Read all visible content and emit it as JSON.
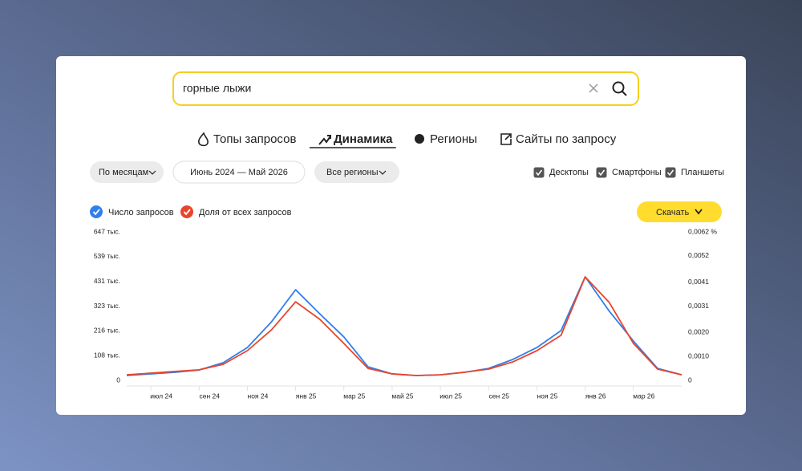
{
  "search": {
    "query": "горные лыжи"
  },
  "tabs": [
    "Топы запросов",
    "Динамика",
    "Регионы",
    "Сайты по запросу"
  ],
  "active_tab": 1,
  "filters": {
    "period": "По месяцам",
    "range": "Июнь 2024 — Май 2026",
    "region": "Все регионы"
  },
  "devices": [
    {
      "label": "Десктопы",
      "checked": true
    },
    {
      "label": "Смартфоны",
      "checked": true
    },
    {
      "label": "Планшеты",
      "checked": true
    }
  ],
  "download": "Скачать",
  "chart_data": {
    "type": "line",
    "categories": [
      null,
      "июл 24",
      null,
      "сен 24",
      null,
      "ноя 24",
      null,
      "янв 25",
      null,
      "мар 25",
      null,
      "май 25",
      null,
      "июл 25",
      null,
      "сен 25",
      null,
      "ноя 25",
      null,
      "янв 26",
      null,
      "мар 26",
      null,
      null
    ],
    "series": [
      {
        "name": "Число запросов",
        "color": "#2f80ed",
        "values": [
          21000,
          28000,
          35000,
          45000,
          77000,
          143000,
          255000,
          395000,
          290000,
          189000,
          59000,
          28000,
          21000,
          24000,
          35000,
          52000,
          91000,
          143000,
          217000,
          451000,
          301000,
          171000,
          52000,
          24000
        ]
      },
      {
        "name": "Доля от всех запросов",
        "color": "#e8452c",
        "axis": "y2",
        "values": [
          0.00023,
          0.0003,
          0.00037,
          0.00044,
          0.00067,
          0.00124,
          0.00211,
          0.00328,
          0.00255,
          0.00154,
          0.0005,
          0.00027,
          0.0002,
          0.00023,
          0.00034,
          0.00047,
          0.00077,
          0.00124,
          0.00188,
          0.00432,
          0.00325,
          0.00154,
          0.00047,
          0.00023
        ]
      }
    ],
    "ylim": [
      0,
      647000
    ],
    "yticks": [
      0,
      {
        "value": 108000,
        "label": "108 тыс."
      },
      {
        "value": 216000,
        "label": "216 тыс."
      },
      {
        "value": 323000,
        "label": "323 тыс."
      },
      {
        "value": 431000,
        "label": "431 тыс."
      },
      {
        "value": 539000,
        "label": "539 тыс."
      },
      {
        "value": 647000,
        "label": "647 тыс."
      }
    ],
    "y2lim": [
      0,
      0.0062
    ],
    "y2ticks": [
      0,
      {
        "value": 0.001,
        "label": "0,0010"
      },
      {
        "value": 0.002,
        "label": "0,0020"
      },
      {
        "value": 0.0031,
        "label": "0,0031"
      },
      {
        "value": 0.0041,
        "label": "0,0041"
      },
      {
        "value": 0.0052,
        "label": "0,0052"
      },
      {
        "value": 0.0062,
        "label": "0,0062 %"
      }
    ]
  }
}
